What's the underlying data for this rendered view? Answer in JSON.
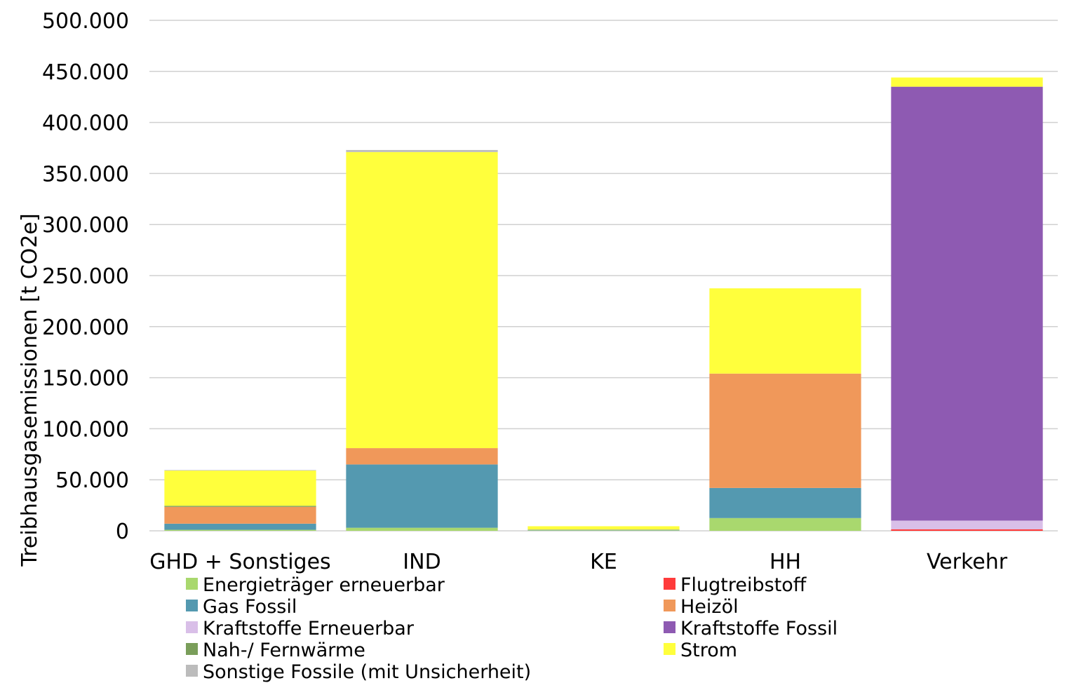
{
  "chart_data": {
    "type": "bar",
    "stacked": true,
    "title": "",
    "xlabel": "",
    "ylabel": "Treibhausgasemissionen  [t CO2e]",
    "ylim": [
      0,
      500000
    ],
    "yticks": [
      0,
      50000,
      100000,
      150000,
      200000,
      250000,
      300000,
      350000,
      400000,
      450000,
      500000
    ],
    "ytick_labels": [
      "0",
      "50.000",
      "100.000",
      "150.000",
      "200.000",
      "250.000",
      "300.000",
      "350.000",
      "400.000",
      "450.000",
      "500.000"
    ],
    "grid": true,
    "legend_position": "bottom",
    "categories": [
      "GHD + Sonstiges",
      "IND",
      "KE",
      "HH",
      "Verkehr"
    ],
    "series": [
      {
        "name": "Energieträger erneuerbar",
        "color": "#a9d86e",
        "values": [
          1000,
          3000,
          500,
          12500,
          0
        ]
      },
      {
        "name": "Flugtreibstoff",
        "color": "#ff3b3b",
        "values": [
          0,
          0,
          0,
          0,
          1500
        ]
      },
      {
        "name": "Gas Fossil",
        "color": "#5499b0",
        "values": [
          6000,
          62000,
          500,
          29500,
          0
        ]
      },
      {
        "name": "Heizöl",
        "color": "#f0985a",
        "values": [
          16500,
          16000,
          200,
          112000,
          0
        ]
      },
      {
        "name": "Kraftstoffe Erneuerbar",
        "color": "#d9bfe8",
        "values": [
          0,
          0,
          0,
          0,
          8500
        ]
      },
      {
        "name": "Kraftstoffe Fossil",
        "color": "#8e5ab2",
        "values": [
          0,
          0,
          0,
          0,
          425000
        ]
      },
      {
        "name": "Nah-/ Fernwärme",
        "color": "#7a9e5a",
        "values": [
          1000,
          0,
          0,
          0,
          0
        ]
      },
      {
        "name": "Strom",
        "color": "#ffff3c",
        "values": [
          34500,
          290000,
          3300,
          83500,
          9000
        ]
      },
      {
        "name": "Sonstige Fossile (mit Unsicherheit)",
        "color": "#bcbcbc",
        "values": [
          500,
          2000,
          0,
          0,
          0
        ]
      }
    ],
    "legend_order": [
      "Energieträger erneuerbar",
      "Flugtreibstoff",
      "Gas Fossil",
      "Heizöl",
      "Kraftstoffe Erneuerbar",
      "Kraftstoffe Fossil",
      "Nah-/ Fernwärme",
      "Strom",
      "Sonstige Fossile (mit Unsicherheit)"
    ]
  }
}
